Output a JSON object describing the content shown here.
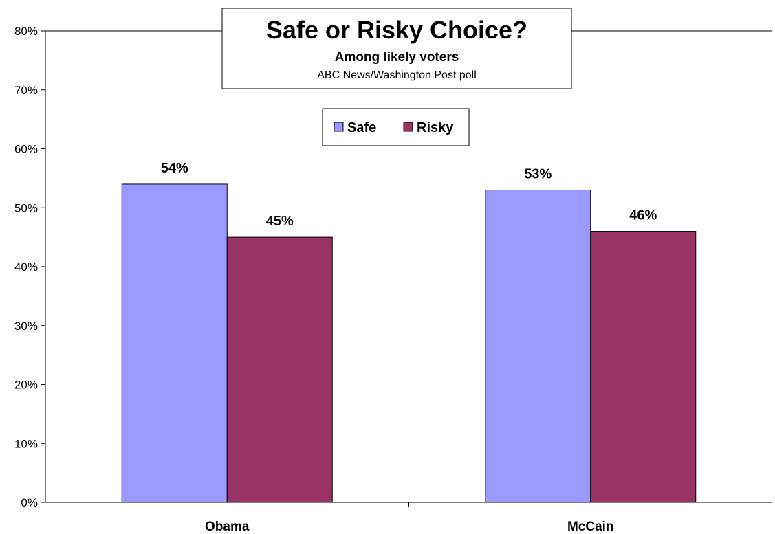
{
  "chart_data": {
    "type": "bar",
    "title": "Safe or Risky Choice?",
    "subtitle": "Among likely voters",
    "source": "ABC News/Washington Post poll",
    "categories": [
      "Obama",
      "McCain"
    ],
    "series": [
      {
        "name": "Safe",
        "values": [
          54,
          53
        ],
        "color": "#9999ff",
        "labels": [
          "54%",
          "53%"
        ]
      },
      {
        "name": "Risky",
        "values": [
          45,
          46
        ],
        "color": "#993366",
        "labels": [
          "45%",
          "46%"
        ]
      }
    ],
    "ylim": [
      0,
      80
    ],
    "ytick_step": 10,
    "ytick_labels": [
      "0%",
      "10%",
      "20%",
      "30%",
      "40%",
      "50%",
      "60%",
      "70%",
      "80%"
    ],
    "grid": false,
    "legend_position": "top-center"
  }
}
